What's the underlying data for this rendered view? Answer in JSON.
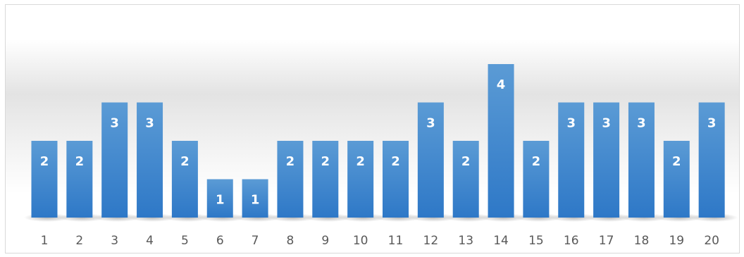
{
  "chart_data": {
    "type": "bar",
    "categories": [
      "1",
      "2",
      "3",
      "4",
      "5",
      "6",
      "7",
      "8",
      "9",
      "10",
      "11",
      "12",
      "13",
      "14",
      "15",
      "16",
      "17",
      "18",
      "19",
      "20"
    ],
    "values": [
      2,
      2,
      3,
      3,
      2,
      1,
      1,
      2,
      2,
      2,
      2,
      3,
      2,
      4,
      2,
      3,
      3,
      3,
      2,
      3
    ],
    "title": "",
    "xlabel": "",
    "ylabel": "",
    "ylim": [
      0,
      4
    ],
    "grid": false,
    "legend": "none",
    "data_labels": true,
    "bar_color": "#4a90d4",
    "bar_color_light": "#5b9bd5",
    "bar_color_dark": "#2e78c7"
  }
}
